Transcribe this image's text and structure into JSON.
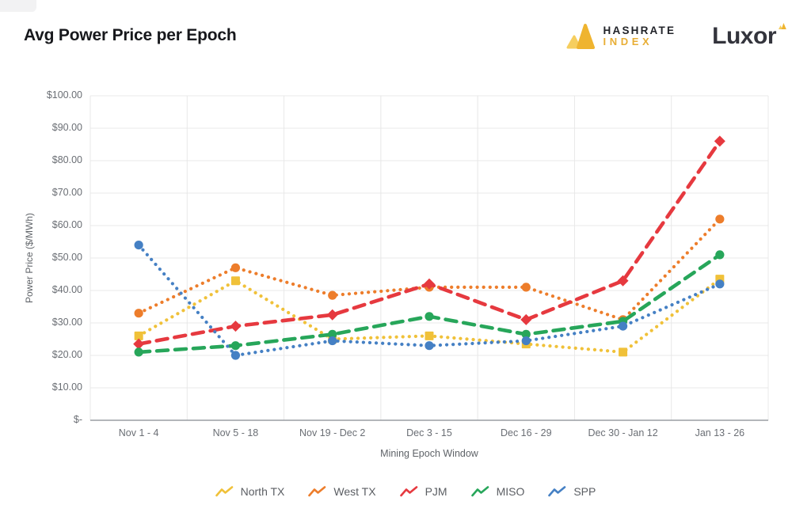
{
  "header": {
    "title": "Avg Power Price per Epoch",
    "hashrate_logo": {
      "line1": "HASHRATE",
      "line2": "INDEX",
      "mark_color_light": "#f6ce5e",
      "mark_color": "#efb42f",
      "index_color": "#e8ae35"
    },
    "luxor_logo": {
      "text": "Luxor",
      "mark_color_light": "#f6ce5e",
      "mark_color": "#efb42f"
    }
  },
  "chart_data": {
    "type": "line",
    "title": "Avg Power Price per Epoch",
    "xlabel": "Mining Epoch Window",
    "ylabel": "Power Price ($/MWh)",
    "categories": [
      "Nov 1 - 4",
      "Nov 5 - 18",
      "Nov 19 - Dec 2",
      "Dec 3 - 15",
      "Dec 16 - 29",
      "Dec 30 - Jan 12",
      "Jan 13 - 26"
    ],
    "series": [
      {
        "name": "North TX",
        "color": "#f0c139",
        "style": "dotted",
        "marker": "square",
        "values": [
          26,
          43,
          25,
          26,
          23.5,
          21,
          43.5
        ]
      },
      {
        "name": "West TX",
        "color": "#ed7d2b",
        "style": "dotted",
        "marker": "circle",
        "values": [
          33,
          47,
          38.5,
          41,
          41,
          31,
          62
        ]
      },
      {
        "name": "PJM",
        "color": "#e6393f",
        "style": "dashed",
        "marker": "diamond",
        "values": [
          23.5,
          29,
          32.5,
          42,
          31,
          43,
          86
        ]
      },
      {
        "name": "MISO",
        "color": "#27a65a",
        "style": "dashed",
        "marker": "circle",
        "values": [
          21,
          23,
          26.5,
          32,
          26.5,
          30.5,
          51
        ]
      },
      {
        "name": "SPP",
        "color": "#4580c4",
        "style": "dotted",
        "marker": "circle",
        "values": [
          54,
          20,
          24.5,
          23,
          24.5,
          29,
          42
        ]
      }
    ],
    "ylim": [
      0,
      100
    ],
    "ytick_step": 10,
    "ytick_labels": [
      "$-",
      "$10.00",
      "$20.00",
      "$30.00",
      "$40.00",
      "$50.00",
      "$60.00",
      "$70.00",
      "$80.00",
      "$90.00",
      "$100.00"
    ],
    "grid": true,
    "legend_position": "bottom",
    "grid_color": "#e8e8e8",
    "axis_color": "#9a9ea4"
  }
}
